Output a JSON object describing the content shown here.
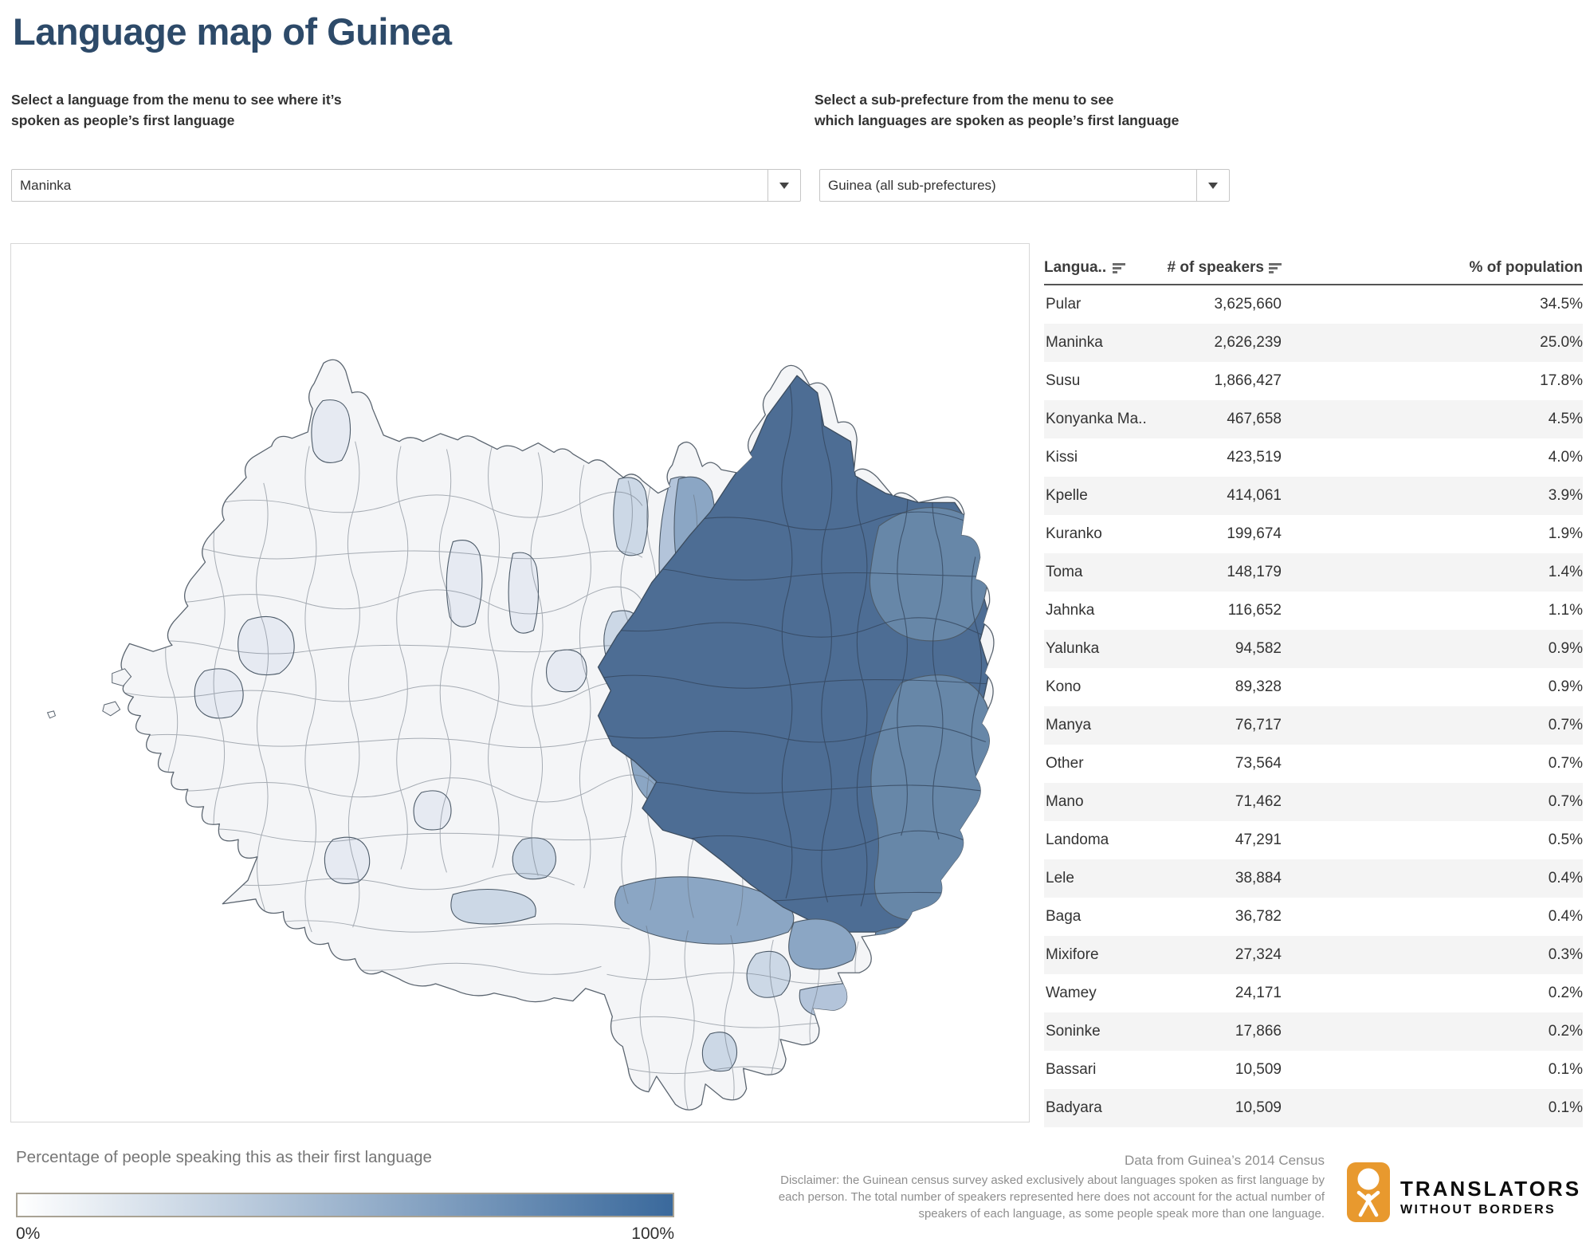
{
  "title": "Language map of Guinea",
  "language_selector": {
    "label_line1": "Select a language from the menu to see where it’s",
    "label_line2": "spoken as people’s first language",
    "value": "Maninka"
  },
  "subprefecture_selector": {
    "label_line1": "Select a sub-prefecture from the menu to see",
    "label_line2": "which languages are spoken as people’s first language",
    "value": "Guinea (all sub-prefectures)"
  },
  "table": {
    "columns": [
      "Langua..",
      "# of speakers",
      "% of population"
    ],
    "rows": [
      {
        "language": "Pular",
        "speakers": "3,625,660",
        "percent": "34.5%"
      },
      {
        "language": "Maninka",
        "speakers": "2,626,239",
        "percent": "25.0%"
      },
      {
        "language": "Susu",
        "speakers": "1,866,427",
        "percent": "17.8%"
      },
      {
        "language": "Konyanka Ma..",
        "speakers": "467,658",
        "percent": "4.5%"
      },
      {
        "language": "Kissi",
        "speakers": "423,519",
        "percent": "4.0%"
      },
      {
        "language": "Kpelle",
        "speakers": "414,061",
        "percent": "3.9%"
      },
      {
        "language": "Kuranko",
        "speakers": "199,674",
        "percent": "1.9%"
      },
      {
        "language": "Toma",
        "speakers": "148,179",
        "percent": "1.4%"
      },
      {
        "language": "Jahnka",
        "speakers": "116,652",
        "percent": "1.1%"
      },
      {
        "language": "Yalunka",
        "speakers": "94,582",
        "percent": "0.9%"
      },
      {
        "language": "Kono",
        "speakers": "89,328",
        "percent": "0.9%"
      },
      {
        "language": "Manya",
        "speakers": "76,717",
        "percent": "0.7%"
      },
      {
        "language": "Other",
        "speakers": "73,564",
        "percent": "0.7%"
      },
      {
        "language": "Mano",
        "speakers": "71,462",
        "percent": "0.7%"
      },
      {
        "language": "Landoma",
        "speakers": "47,291",
        "percent": "0.5%"
      },
      {
        "language": "Lele",
        "speakers": "38,884",
        "percent": "0.4%"
      },
      {
        "language": "Baga",
        "speakers": "36,782",
        "percent": "0.4%"
      },
      {
        "language": "Mixifore",
        "speakers": "27,324",
        "percent": "0.3%"
      },
      {
        "language": "Wamey",
        "speakers": "24,171",
        "percent": "0.2%"
      },
      {
        "language": "Soninke",
        "speakers": "17,866",
        "percent": "0.2%"
      },
      {
        "language": "Bassari",
        "speakers": "10,509",
        "percent": "0.1%"
      },
      {
        "language": "Badyara",
        "speakers": "10,509",
        "percent": "0.1%"
      }
    ]
  },
  "legend": {
    "title": "Percentage of people speaking this as their first language",
    "min_label": "0%",
    "max_label": "100%",
    "gradient": [
      "#ffffff",
      "#3a699c"
    ]
  },
  "footer": {
    "source": "Data from Guinea’s 2014 Census",
    "disclaimer_line1": "Disclaimer: the Guinean census survey asked exclusively about languages spoken as first language by",
    "disclaimer_line2": "each person. The total number of speakers represented here does not account for the actual  number of",
    "disclaimer_line3": "speakers of each language, as some people speak more than one language."
  },
  "logo": {
    "line1": "TRANSLATORS",
    "line2": "WITHOUT BORDERS",
    "brand_color": "#e8992e"
  },
  "map": {
    "palette": {
      "base": "#f4f5f7",
      "faint": "#e6eaf2",
      "light": "#ccd8e6",
      "mlight": "#b3c4da",
      "medium": "#8ba6c4",
      "mdark": "#6787a8",
      "dark": "#4d6d94",
      "stroke": "#5a646f"
    }
  },
  "chart_data": {
    "type": "choropleth",
    "title": "Language map of Guinea",
    "selected_language": "Maninka",
    "selected_region": "Guinea (all sub-prefectures)",
    "legend": {
      "label": "Percentage of people speaking this as their first language",
      "min": "0%",
      "max": "100%",
      "colors": [
        "#ffffff",
        "#3a699c"
      ]
    },
    "map_reading": "Maninka first-language share is highest (dark blue, near 100%) in the northeastern / Upper Guinea sub-prefectures, moderate (medium blue) in a central transition band and a strip south of the core, and near 0% (white) across western Guinea and most of the southeastern panhandle",
    "table": {
      "columns": [
        "Language",
        "# of speakers",
        "% of population"
      ],
      "rows": [
        [
          "Pular",
          3625660,
          34.5
        ],
        [
          "Maninka",
          2626239,
          25.0
        ],
        [
          "Susu",
          1866427,
          17.8
        ],
        [
          "Konyanka Ma..",
          467658,
          4.5
        ],
        [
          "Kissi",
          423519,
          4.0
        ],
        [
          "Kpelle",
          414061,
          3.9
        ],
        [
          "Kuranko",
          199674,
          1.9
        ],
        [
          "Toma",
          148179,
          1.4
        ],
        [
          "Jahnka",
          116652,
          1.1
        ],
        [
          "Yalunka",
          94582,
          0.9
        ],
        [
          "Kono",
          89328,
          0.9
        ],
        [
          "Manya",
          76717,
          0.7
        ],
        [
          "Other",
          73564,
          0.7
        ],
        [
          "Mano",
          71462,
          0.7
        ],
        [
          "Landoma",
          47291,
          0.5
        ],
        [
          "Lele",
          38884,
          0.4
        ],
        [
          "Baga",
          36782,
          0.4
        ],
        [
          "Mixifore",
          27324,
          0.3
        ],
        [
          "Wamey",
          24171,
          0.2
        ],
        [
          "Soninke",
          17866,
          0.2
        ],
        [
          "Bassari",
          10509,
          0.1
        ],
        [
          "Badyara",
          10509,
          0.1
        ]
      ]
    }
  }
}
